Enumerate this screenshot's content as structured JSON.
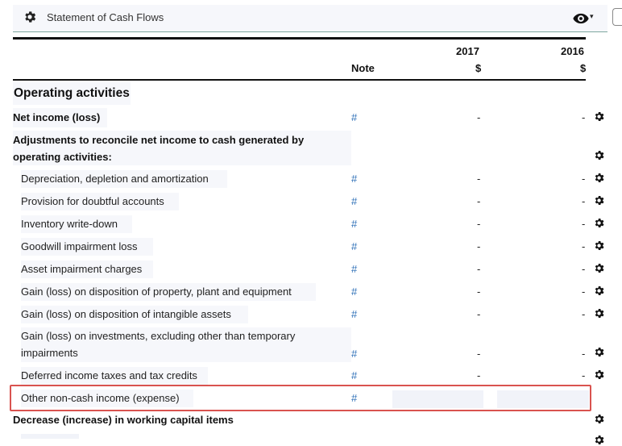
{
  "header": {
    "title": "Statement of Cash Flows",
    "settings_icon": "gear-icon",
    "view_icon": "eye-icon",
    "caret": "▾"
  },
  "columns": {
    "note": "Note",
    "years": [
      {
        "year": "2017",
        "unit": "$"
      },
      {
        "year": "2016",
        "unit": "$"
      }
    ]
  },
  "section": "Operating activities",
  "net_income": {
    "label": "Net income (loss)",
    "note": "#",
    "v2017": "-",
    "v2016": "-"
  },
  "adjustments_heading": "Adjustments to reconcile net income to cash generated by operating activities:",
  "items": [
    {
      "label": "Depreciation, depletion and amortization",
      "note": "#",
      "v2017": "-",
      "v2016": "-"
    },
    {
      "label": "Provision for doubtful accounts",
      "note": "#",
      "v2017": "-",
      "v2016": "-"
    },
    {
      "label": "Inventory write-down",
      "note": "#",
      "v2017": "-",
      "v2016": "-"
    },
    {
      "label": "Goodwill impairment loss",
      "note": "#",
      "v2017": "-",
      "v2016": "-"
    },
    {
      "label": "Asset impairment charges",
      "note": "#",
      "v2017": "-",
      "v2016": "-"
    },
    {
      "label": "Gain (loss) on disposition of property, plant and equipment",
      "note": "#",
      "v2017": "-",
      "v2016": "-"
    },
    {
      "label": "Gain (loss) on disposition of intangible assets",
      "note": "#",
      "v2017": "-",
      "v2016": "-"
    },
    {
      "label": "Gain (loss) on investments, excluding other than temporary impairments",
      "note": "#",
      "v2017": "-",
      "v2016": "-"
    },
    {
      "label": "Deferred income taxes and tax credits",
      "note": "#",
      "v2017": "-",
      "v2016": "-"
    }
  ],
  "other_item": {
    "label": "Other non-cash income (expense)",
    "note": "#",
    "v2017": "",
    "v2016": ""
  },
  "working_capital_heading": "Decrease (increase) in working capital items"
}
